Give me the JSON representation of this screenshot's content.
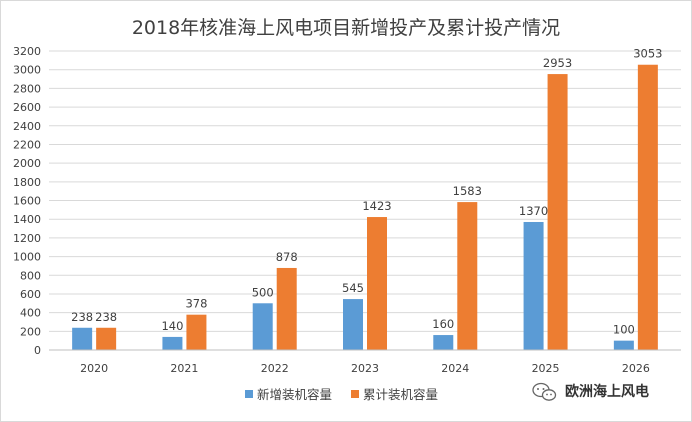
{
  "chart_data": {
    "type": "bar",
    "title": "2018年核准海上风电项目新增投产及累计投产情况",
    "categories": [
      "2020",
      "2021",
      "2022",
      "2023",
      "2024",
      "2025",
      "2026"
    ],
    "series": [
      {
        "name": "新增装机容量",
        "color": "#5b9bd5",
        "values": [
          238,
          140,
          500,
          545,
          160,
          1370,
          100
        ]
      },
      {
        "name": "累计装机容量",
        "color": "#ed7d31",
        "values": [
          238,
          378,
          878,
          1423,
          1583,
          2953,
          3053
        ]
      }
    ],
    "yticks": [
      0,
      200,
      400,
      600,
      800,
      1000,
      1200,
      1400,
      1600,
      1800,
      2000,
      2200,
      2400,
      2600,
      2800,
      3000,
      3200
    ],
    "ylim": [
      0,
      3200
    ],
    "xlabel": "",
    "ylabel": "",
    "grid": true,
    "legend": "bottom"
  },
  "watermark": {
    "text": "欧洲海上风电",
    "icon": "wechat-icon"
  }
}
